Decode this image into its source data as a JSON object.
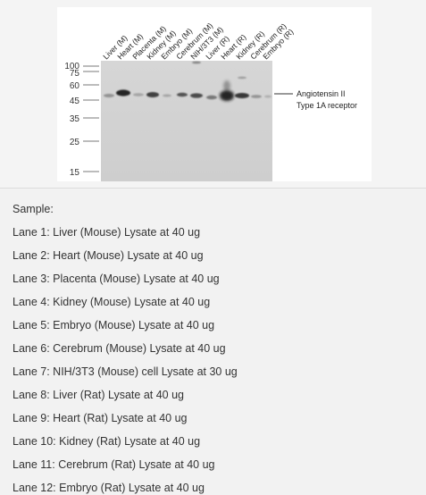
{
  "figure": {
    "lane_labels": [
      "Liver (M)",
      "Heart (M)",
      "Placenta (M)",
      "Kidney (M)",
      "Embryo (M)",
      "Cerebrum (M)",
      "NIH/3T3 (M)",
      "Liver (R)",
      "Heart (R)",
      "Kidney (R)",
      "Cerebrum (R)",
      "Embryo (R)"
    ],
    "mw_markers": [
      "100",
      "75",
      "60",
      "45",
      "35",
      "25",
      "15"
    ],
    "band_label_line1": "Angiotensin II",
    "band_label_line2": "Type 1A receptor"
  },
  "samples": {
    "heading": "Sample:",
    "lanes": [
      "Lane 1: Liver (Mouse) Lysate at 40 ug",
      "Lane 2: Heart (Mouse) Lysate at 40 ug",
      "Lane 3: Placenta (Mouse) Lysate at 40 ug",
      "Lane 4: Kidney (Mouse) Lysate at 40 ug",
      "Lane 5: Embryo (Mouse) Lysate at 40 ug",
      "Lane 6: Cerebrum (Mouse) Lysate at 40 ug",
      "Lane 7: NIH/3T3 (Mouse) cell Lysate at 30 ug",
      "Lane 8: Liver (Rat) Lysate at 40 ug",
      "Lane 9: Heart (Rat) Lysate at 40 ug",
      "Lane 10: Kidney (Rat) Lysate at 40 ug",
      "Lane 11: Cerebrum (Rat) Lysate at 40 ug",
      "Lane 12: Embryo (Rat) Lysate at 40 ug"
    ]
  },
  "colors": {
    "membrane": "#d3d3d3",
    "band": "#1a1a1a"
  }
}
